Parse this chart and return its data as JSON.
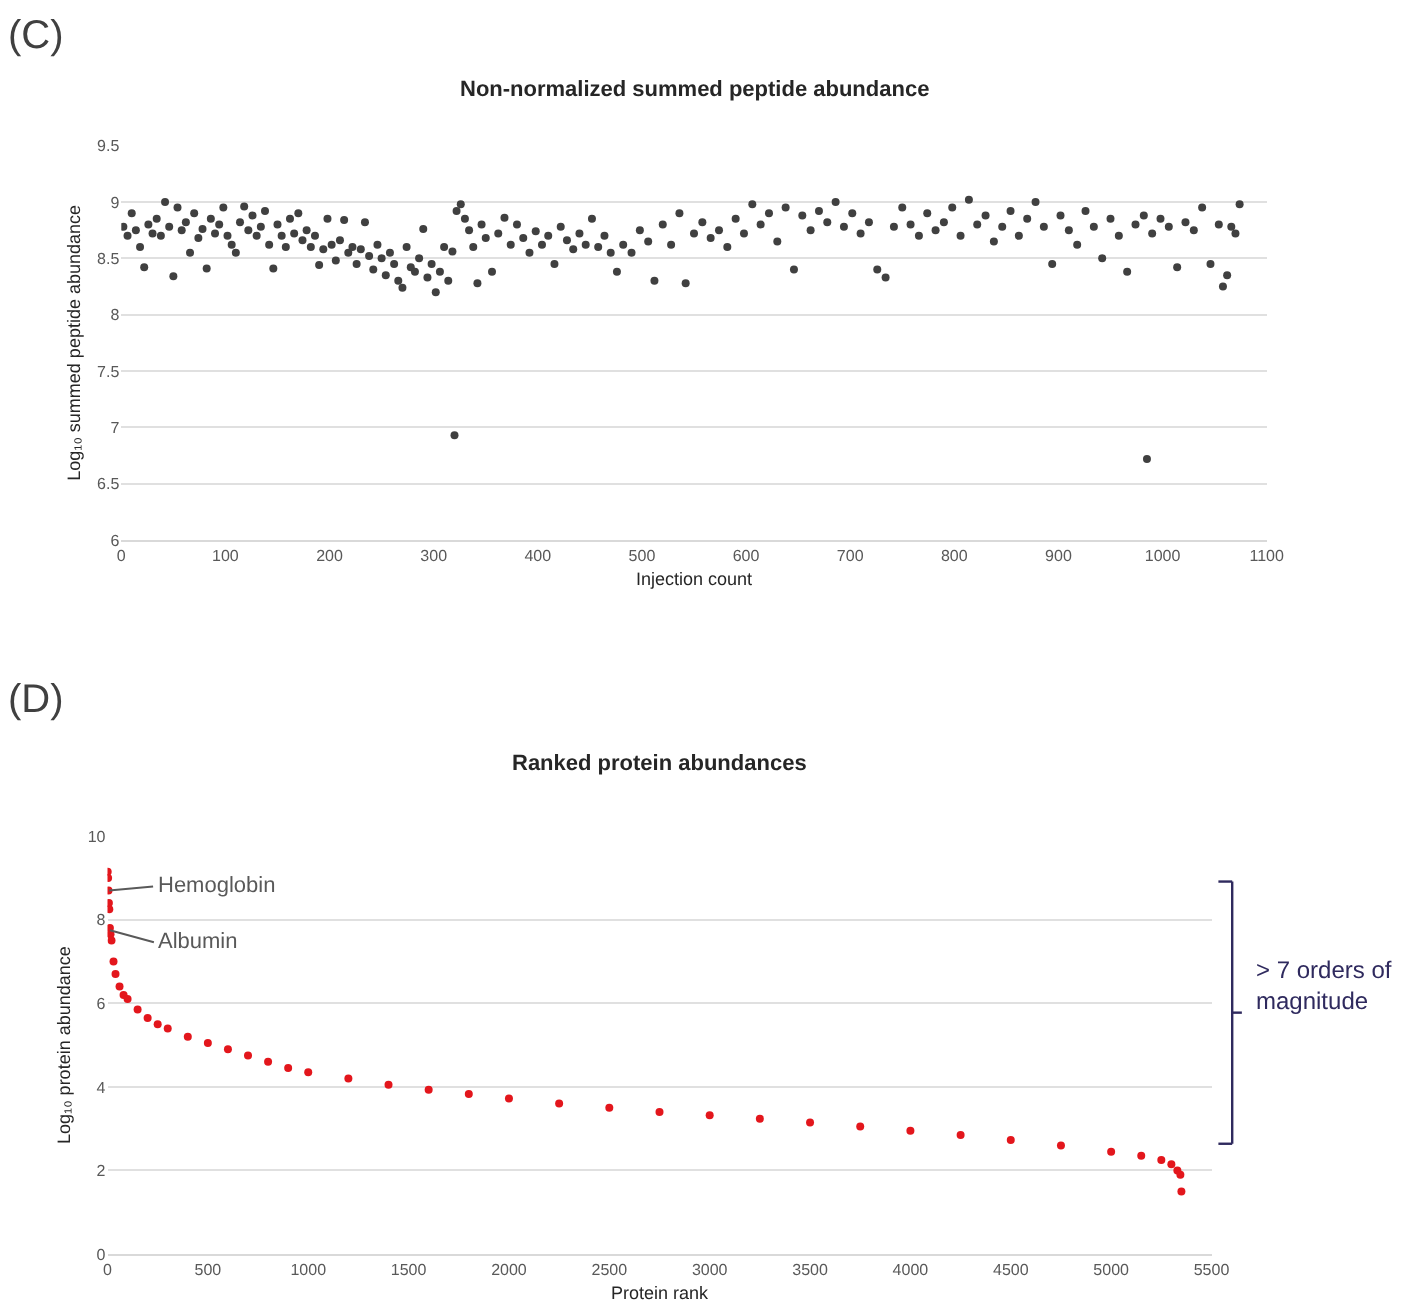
{
  "chart_data": [
    {
      "type": "scatter",
      "title": "Non-normalized summed peptide abundance",
      "xlabel": "Injection count",
      "ylabel": "Log₁₀ summed peptide abundance",
      "annotations": [
        "(C)"
      ],
      "xlim": [
        0,
        1100
      ],
      "xticks": [
        0,
        100,
        200,
        300,
        400,
        500,
        600,
        700,
        800,
        900,
        1000,
        1100
      ],
      "ylim": [
        6,
        9.5
      ],
      "yticks": [
        6,
        6.5,
        7,
        7.5,
        8,
        8.5,
        9,
        9.5
      ],
      "grid": "y",
      "marker": "circle",
      "series": [
        {
          "color": "#404040",
          "x": [
            2,
            6,
            10,
            14,
            18,
            22,
            26,
            30,
            34,
            38,
            42,
            46,
            50,
            54,
            58,
            62,
            66,
            70,
            74,
            78,
            82,
            86,
            90,
            94,
            98,
            102,
            106,
            110,
            114,
            118,
            122,
            126,
            130,
            134,
            138,
            142,
            146,
            150,
            154,
            158,
            162,
            166,
            170,
            174,
            178,
            182,
            186,
            190,
            194,
            198,
            202,
            206,
            210,
            214,
            218,
            222,
            226,
            230,
            234,
            238,
            242,
            246,
            250,
            254,
            258,
            262,
            266,
            270,
            274,
            278,
            282,
            286,
            290,
            294,
            298,
            302,
            306,
            310,
            314,
            318,
            320,
            322,
            326,
            330,
            334,
            338,
            342,
            346,
            350,
            356,
            362,
            368,
            374,
            380,
            386,
            392,
            398,
            404,
            410,
            416,
            422,
            428,
            434,
            440,
            446,
            452,
            458,
            464,
            470,
            476,
            482,
            490,
            498,
            506,
            512,
            520,
            528,
            536,
            542,
            550,
            558,
            566,
            574,
            582,
            590,
            598,
            606,
            614,
            622,
            630,
            638,
            646,
            654,
            662,
            670,
            678,
            686,
            694,
            702,
            710,
            718,
            726,
            734,
            742,
            750,
            758,
            766,
            774,
            782,
            790,
            798,
            806,
            814,
            822,
            830,
            838,
            846,
            854,
            862,
            870,
            878,
            886,
            894,
            902,
            910,
            918,
            926,
            934,
            942,
            950,
            958,
            966,
            974,
            982,
            985,
            990,
            998,
            1006,
            1014,
            1022,
            1030,
            1038,
            1046,
            1054,
            1058,
            1062,
            1066,
            1070,
            1074
          ],
          "values": [
            8.78,
            8.7,
            8.9,
            8.75,
            8.6,
            8.42,
            8.8,
            8.72,
            8.85,
            8.7,
            9.0,
            8.78,
            8.34,
            8.95,
            8.75,
            8.82,
            8.55,
            8.9,
            8.68,
            8.76,
            8.41,
            8.85,
            8.72,
            8.8,
            8.95,
            8.7,
            8.62,
            8.55,
            8.82,
            8.96,
            8.75,
            8.88,
            8.7,
            8.78,
            8.92,
            8.62,
            8.41,
            8.8,
            8.7,
            8.6,
            8.85,
            8.72,
            8.9,
            8.66,
            8.75,
            8.6,
            8.7,
            8.44,
            8.58,
            8.85,
            8.62,
            8.48,
            8.66,
            8.84,
            8.55,
            8.6,
            8.45,
            8.58,
            8.82,
            8.52,
            8.4,
            8.62,
            8.5,
            8.35,
            8.55,
            8.45,
            8.3,
            8.24,
            8.6,
            8.42,
            8.38,
            8.5,
            8.76,
            8.33,
            8.45,
            8.2,
            8.38,
            8.6,
            8.3,
            8.56,
            6.93,
            8.92,
            8.98,
            8.85,
            8.75,
            8.6,
            8.28,
            8.8,
            8.68,
            8.38,
            8.72,
            8.86,
            8.62,
            8.8,
            8.68,
            8.55,
            8.74,
            8.62,
            8.7,
            8.45,
            8.78,
            8.66,
            8.58,
            8.72,
            8.62,
            8.85,
            8.6,
            8.7,
            8.55,
            8.38,
            8.62,
            8.55,
            8.75,
            8.65,
            8.3,
            8.8,
            8.62,
            8.9,
            8.28,
            8.72,
            8.82,
            8.68,
            8.75,
            8.6,
            8.85,
            8.72,
            8.98,
            8.8,
            8.9,
            8.65,
            8.95,
            8.4,
            8.88,
            8.75,
            8.92,
            8.82,
            9.0,
            8.78,
            8.9,
            8.72,
            8.82,
            8.4,
            8.33,
            8.78,
            8.95,
            8.8,
            8.7,
            8.9,
            8.75,
            8.82,
            8.95,
            8.7,
            9.02,
            8.8,
            8.88,
            8.65,
            8.78,
            8.92,
            8.7,
            8.85,
            9.0,
            8.78,
            8.45,
            8.88,
            8.75,
            8.62,
            8.92,
            8.78,
            8.5,
            8.85,
            8.7,
            8.38,
            8.8,
            8.88,
            6.72,
            8.72,
            8.85,
            8.78,
            8.42,
            8.82,
            8.75,
            8.95,
            8.45,
            8.8,
            8.25,
            8.35,
            8.78,
            8.72,
            8.98
          ]
        }
      ]
    },
    {
      "type": "scatter",
      "title": "Ranked protein abundances",
      "xlabel": "Protein rank",
      "ylabel": "Log₁₀ protein abundance",
      "annotations": [
        "(D)",
        {
          "text": "Hemoglobin",
          "x": 8,
          "y": 8.7
        },
        {
          "text": "Albumin",
          "x": 12,
          "y": 7.75
        },
        "> 7 orders of magnitude"
      ],
      "xlim": [
        0,
        5500
      ],
      "xticks": [
        0,
        500,
        1000,
        1500,
        2000,
        2500,
        3000,
        3500,
        4000,
        4500,
        5000,
        5500
      ],
      "ylim": [
        0,
        10
      ],
      "yticks": [
        0,
        2,
        4,
        6,
        8,
        10
      ],
      "grid": "y",
      "marker": "circle",
      "series": [
        {
          "color": "#e3161c",
          "x": [
            1,
            3,
            5,
            7,
            9,
            12,
            15,
            20,
            30,
            40,
            60,
            80,
            100,
            150,
            200,
            250,
            300,
            400,
            500,
            600,
            700,
            800,
            900,
            1000,
            1200,
            1400,
            1600,
            1800,
            2000,
            2250,
            2500,
            2750,
            3000,
            3250,
            3500,
            3750,
            4000,
            4250,
            4500,
            4750,
            5000,
            5150,
            5250,
            5300,
            5330,
            5345,
            5350
          ],
          "values": [
            9.15,
            9.0,
            8.7,
            8.4,
            8.25,
            7.8,
            7.65,
            7.5,
            7.0,
            6.7,
            6.4,
            6.2,
            6.1,
            5.85,
            5.65,
            5.5,
            5.4,
            5.2,
            5.05,
            4.9,
            4.75,
            4.6,
            4.45,
            4.35,
            4.2,
            4.05,
            3.93,
            3.83,
            3.72,
            3.6,
            3.5,
            3.4,
            3.32,
            3.24,
            3.15,
            3.05,
            2.95,
            2.85,
            2.73,
            2.6,
            2.45,
            2.35,
            2.25,
            2.15,
            2.0,
            1.9,
            1.5
          ]
        }
      ]
    }
  ]
}
